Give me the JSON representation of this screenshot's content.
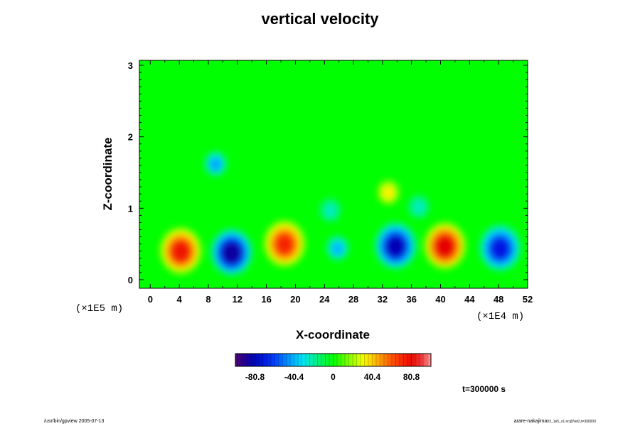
{
  "chart_data": {
    "type": "heatmap",
    "title": "vertical velocity",
    "xlabel": "X-coordinate",
    "ylabel": "Z-coordinate",
    "x_scale_note": "(×1E4 m)",
    "y_scale_note": "(×1E5 m)",
    "xlim": [
      -1.5,
      52
    ],
    "ylim": [
      -0.12,
      3.07
    ],
    "x_ticks": [
      0,
      4,
      8,
      12,
      16,
      20,
      24,
      28,
      32,
      36,
      40,
      44,
      48,
      52
    ],
    "y_ticks": [
      0,
      1,
      2,
      3
    ],
    "colorbar": {
      "range": [
        -101,
        101
      ],
      "ticks": [
        -80.8,
        -40.4,
        0,
        40.4,
        80.8
      ],
      "tick_labels": [
        "-80.8",
        "-40.4",
        "0",
        "40.4",
        "80.8"
      ],
      "colormap": "rainbow (purple-blue-cyan-green-yellow-red-pink)"
    },
    "cells": [
      {
        "x": 4.2,
        "z": 0.38,
        "value": 78
      },
      {
        "x": 11.2,
        "z": 0.36,
        "value": -88
      },
      {
        "x": 18.5,
        "z": 0.48,
        "value": 72
      },
      {
        "x": 25.8,
        "z": 0.42,
        "value": -42
      },
      {
        "x": 33.8,
        "z": 0.45,
        "value": -82
      },
      {
        "x": 40.6,
        "z": 0.45,
        "value": 85
      },
      {
        "x": 48.2,
        "z": 0.42,
        "value": -72
      },
      {
        "x": 9.0,
        "z": 1.6,
        "value": -45
      },
      {
        "x": 32.8,
        "z": 1.2,
        "value": 35
      },
      {
        "x": 24.8,
        "z": 0.95,
        "value": -25
      },
      {
        "x": 37.0,
        "z": 1.0,
        "value": -25
      }
    ]
  },
  "time_label": "t=300000 s",
  "footer_left": "/usr/bin/gpview 2005-07-13",
  "footer_right_main": "arare-nakajima",
  "footer_right_small": "03_1e5_v1.nc@Vel2,t=300000"
}
